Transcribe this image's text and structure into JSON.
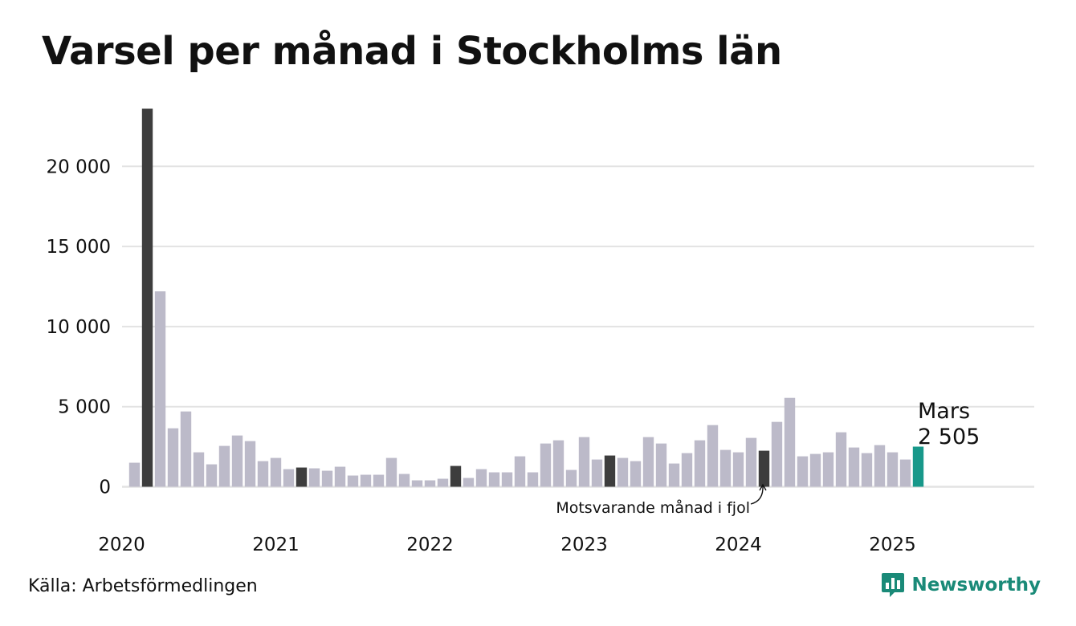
{
  "header": {
    "title": "Varsel per månad i Stockholms län"
  },
  "footer": {
    "source": "Källa: Arbetsförmedlingen",
    "brand": "Newsworthy"
  },
  "colors": {
    "default": "#bcbac9",
    "same_month": "#3d3d3d",
    "current": "#18988a",
    "grid": "#e3e3e3",
    "brand": "#1a8a78"
  },
  "chart_data": {
    "type": "bar",
    "title": "Varsel per månad i Stockholms län",
    "xlabel": "",
    "ylabel": "",
    "ylim": [
      0,
      23500
    ],
    "grid": true,
    "y_ticks": [
      0,
      5000,
      10000,
      15000,
      20000
    ],
    "y_tick_labels": [
      "0",
      "5 000",
      "10 000",
      "15 000",
      "20 000"
    ],
    "x_tick_labels": [
      "2020",
      "2021",
      "2022",
      "2023",
      "2024",
      "2025"
    ],
    "start": "2020-02",
    "values": [
      1500,
      23600,
      12200,
      3650,
      4700,
      2150,
      1400,
      2550,
      3200,
      2850,
      1600,
      1800,
      1100,
      1200,
      1150,
      1000,
      1250,
      700,
      750,
      750,
      1800,
      800,
      400,
      400,
      500,
      1300,
      550,
      1100,
      900,
      900,
      1900,
      900,
      2700,
      2900,
      1050,
      3100,
      1700,
      1950,
      1800,
      1600,
      3100,
      2700,
      1450,
      2100,
      2900,
      3850,
      2300,
      2150,
      3050,
      2250,
      4050,
      5550,
      1900,
      2050,
      2150,
      3400,
      2450,
      2100,
      2600,
      2150,
      1700,
      2505
    ],
    "bar_types": [
      "default",
      "same_month",
      "default",
      "default",
      "default",
      "default",
      "default",
      "default",
      "default",
      "default",
      "default",
      "default",
      "default",
      "same_month",
      "default",
      "default",
      "default",
      "default",
      "default",
      "default",
      "default",
      "default",
      "default",
      "default",
      "default",
      "same_month",
      "default",
      "default",
      "default",
      "default",
      "default",
      "default",
      "default",
      "default",
      "default",
      "default",
      "default",
      "same_month",
      "default",
      "default",
      "default",
      "default",
      "default",
      "default",
      "default",
      "default",
      "default",
      "default",
      "default",
      "same_month",
      "default",
      "default",
      "default",
      "default",
      "default",
      "default",
      "default",
      "default",
      "default",
      "default",
      "default",
      "current"
    ],
    "annotations": {
      "same_month": "Motsvarande månad i fjol",
      "current_month": "Mars",
      "current_value": "2 505"
    }
  }
}
